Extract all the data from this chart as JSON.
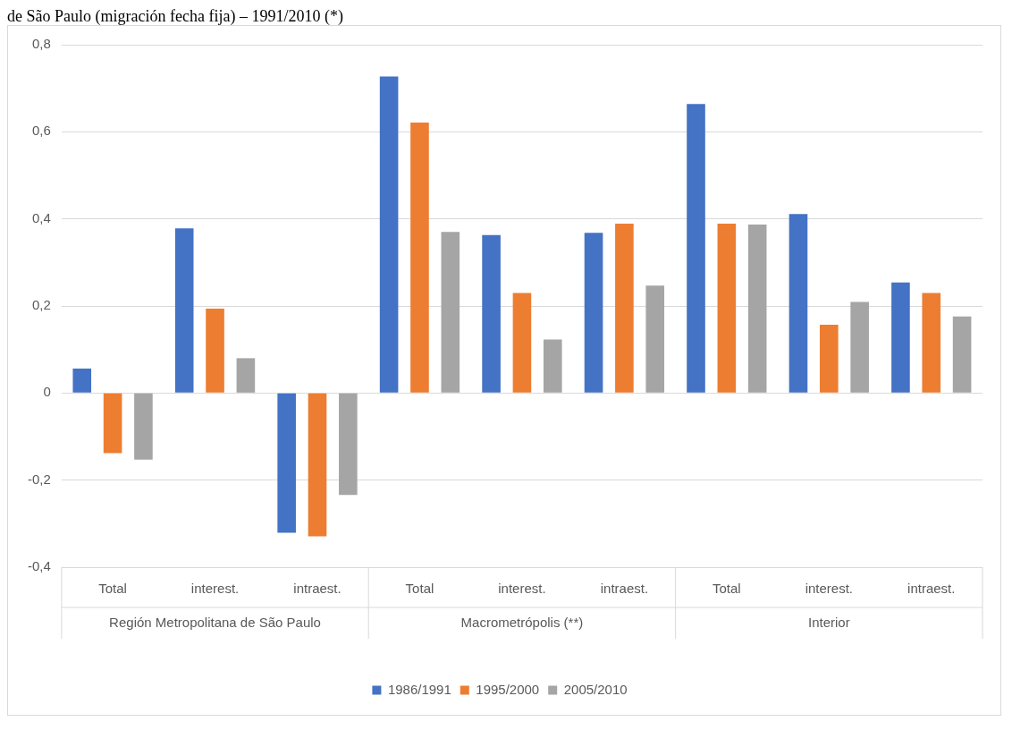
{
  "chart_data": {
    "type": "bar",
    "title": "de São Paulo (migración fecha fija) – 1991/2010 (*)",
    "categories": [
      "Total",
      "interest.",
      "intraest.",
      "Total",
      "interest.",
      "intraest.",
      "Total",
      "interest.",
      "intraest."
    ],
    "annotations": [
      "Región Metropolitana de São Paulo",
      "Macrometrópolis (**)",
      "Interior"
    ],
    "series": [
      {
        "name": "1986/1991",
        "color": "#4472c4",
        "values": [
          0.056,
          0.378,
          -0.321,
          0.727,
          0.363,
          0.368,
          0.664,
          0.411,
          0.254
        ]
      },
      {
        "name": "1995/2000",
        "color": "#ed7d31",
        "values": [
          -0.138,
          0.194,
          -0.329,
          0.621,
          0.23,
          0.389,
          0.389,
          0.157,
          0.23
        ]
      },
      {
        "name": "2005/2010",
        "color": "#a5a5a5",
        "values": [
          -0.153,
          0.08,
          -0.234,
          0.37,
          0.123,
          0.247,
          0.387,
          0.209,
          0.176
        ]
      }
    ],
    "ylim": [
      -0.4,
      0.8
    ],
    "yticks": [
      {
        "value": -0.4,
        "label": "-0,4"
      },
      {
        "value": -0.2,
        "label": "-0,2"
      },
      {
        "value": 0,
        "label": "0"
      },
      {
        "value": 0.2,
        "label": "0,2"
      },
      {
        "value": 0.4,
        "label": "0,4"
      },
      {
        "value": 0.6,
        "label": "0,6"
      },
      {
        "value": 0.8,
        "label": "0,8"
      }
    ],
    "grid": "y",
    "legend": "bottom"
  }
}
